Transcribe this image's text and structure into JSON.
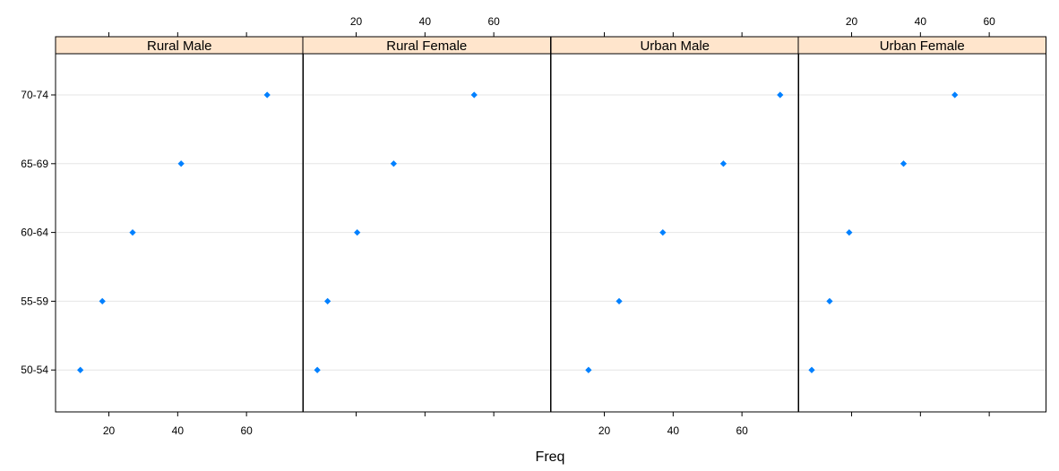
{
  "chart_data": {
    "type": "scatter",
    "plot_style": "dotplot",
    "xlabel": "Freq",
    "ylabel": "",
    "xlim": [
      4.5,
      76.5
    ],
    "x_ticks": [
      20,
      40,
      60
    ],
    "categories": [
      "50-54",
      "55-59",
      "60-64",
      "65-69",
      "70-74"
    ],
    "grid": "horizontal",
    "strip_color": "#ffe5cc",
    "point_color": "#0080ff",
    "panels": [
      {
        "name": "Rural Male",
        "values": [
          11.7,
          18.1,
          26.9,
          41.0,
          66.0
        ]
      },
      {
        "name": "Rural Female",
        "values": [
          8.7,
          11.7,
          20.3,
          30.9,
          54.3
        ]
      },
      {
        "name": "Urban Male",
        "values": [
          15.4,
          24.3,
          37.0,
          54.6,
          71.1
        ]
      },
      {
        "name": "Urban Female",
        "values": [
          8.4,
          13.6,
          19.3,
          35.1,
          50.0
        ]
      }
    ]
  }
}
